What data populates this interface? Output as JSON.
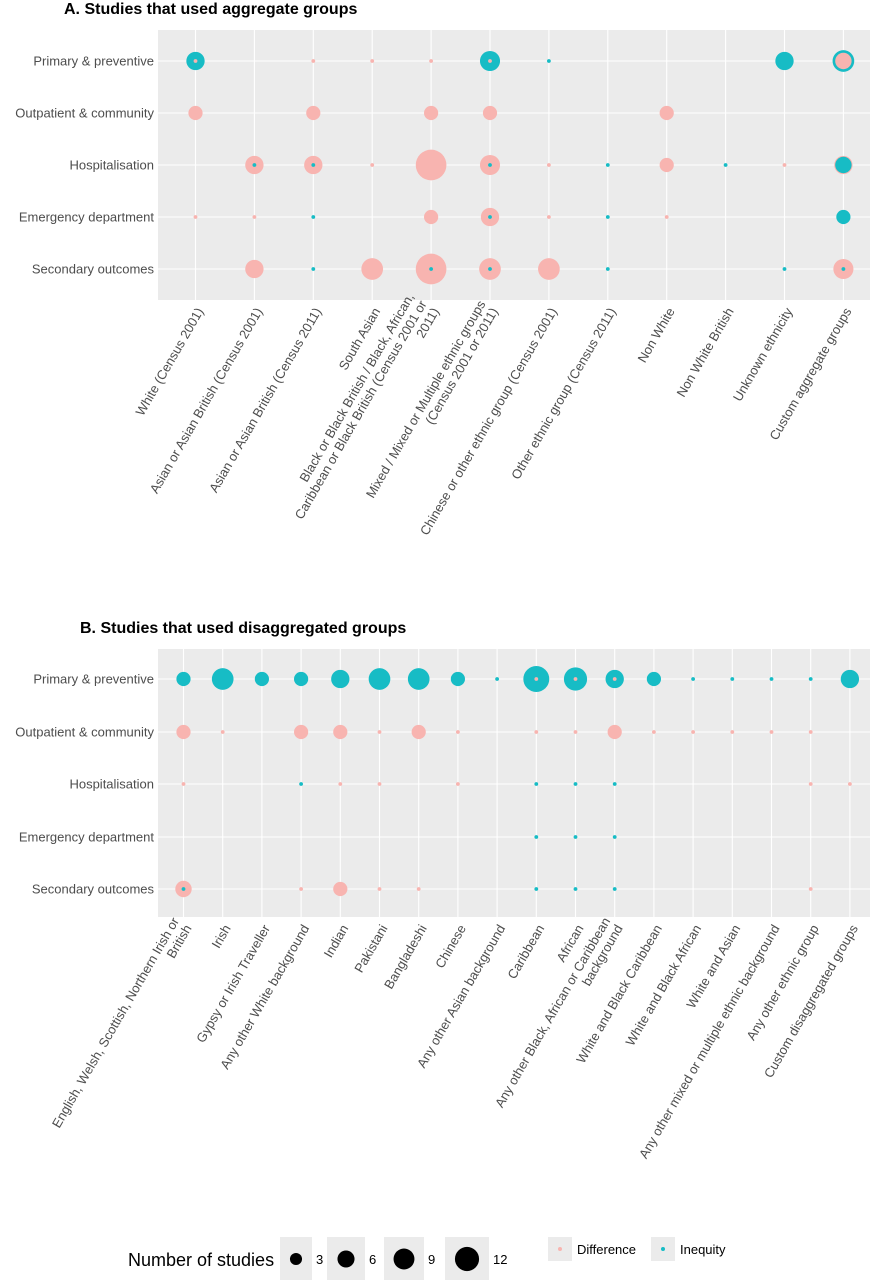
{
  "chart_data": [
    {
      "type": "scatter",
      "title": "A. Studies that used aggregate groups",
      "rows": [
        "Primary & preventive",
        "Outpatient & community",
        "Hospitalisation",
        "Emergency department",
        "Secondary outcomes"
      ],
      "columns": [
        [
          "White (Census 2001)"
        ],
        [
          "Asian or Asian British (Census 2001)"
        ],
        [
          "Asian or Asian British (Census 2011)"
        ],
        [
          "South Asian"
        ],
        [
          "Black or Black British / Black, African,",
          "Caribbean or Black British (Census 2001 or",
          "2011)"
        ],
        [
          "Mixed / Mixed or Multiple ethnic groups",
          "(Census 2001 or 2011)"
        ],
        [
          "Chinese or other ethnic group (Census 2001)"
        ],
        [
          "Other ethnic group (Census 2011)"
        ],
        [
          "Non White"
        ],
        [
          "Non White British"
        ],
        [
          "Unknown ethnicity"
        ],
        [
          "Custom aggregate groups"
        ]
      ],
      "points": [
        {
          "row": 0,
          "col": 0,
          "difference": 1,
          "inequity": 5
        },
        {
          "row": 0,
          "col": 2,
          "difference": 1,
          "inequity": 0
        },
        {
          "row": 0,
          "col": 3,
          "difference": 1,
          "inequity": 0
        },
        {
          "row": 0,
          "col": 4,
          "difference": 1,
          "inequity": 0
        },
        {
          "row": 0,
          "col": 5,
          "difference": 1,
          "inequity": 6
        },
        {
          "row": 0,
          "col": 6,
          "difference": 0,
          "inequity": 1
        },
        {
          "row": 0,
          "col": 10,
          "difference": 0,
          "inequity": 5
        },
        {
          "row": 0,
          "col": 11,
          "difference": 4,
          "inequity": 7
        },
        {
          "row": 1,
          "col": 0,
          "difference": 3,
          "inequity": 0
        },
        {
          "row": 1,
          "col": 2,
          "difference": 3,
          "inequity": 0
        },
        {
          "row": 1,
          "col": 4,
          "difference": 3,
          "inequity": 0
        },
        {
          "row": 1,
          "col": 5,
          "difference": 3,
          "inequity": 0
        },
        {
          "row": 1,
          "col": 8,
          "difference": 3,
          "inequity": 0
        },
        {
          "row": 2,
          "col": 1,
          "difference": 5,
          "inequity": 1
        },
        {
          "row": 2,
          "col": 2,
          "difference": 5,
          "inequity": 1
        },
        {
          "row": 2,
          "col": 3,
          "difference": 1,
          "inequity": 0
        },
        {
          "row": 2,
          "col": 4,
          "difference": 14,
          "inequity": 0
        },
        {
          "row": 2,
          "col": 5,
          "difference": 6,
          "inequity": 1
        },
        {
          "row": 2,
          "col": 6,
          "difference": 1,
          "inequity": 0
        },
        {
          "row": 2,
          "col": 7,
          "difference": 0,
          "inequity": 1
        },
        {
          "row": 2,
          "col": 8,
          "difference": 3,
          "inequity": 0
        },
        {
          "row": 2,
          "col": 9,
          "difference": 0,
          "inequity": 1
        },
        {
          "row": 2,
          "col": 10,
          "difference": 1,
          "inequity": 0
        },
        {
          "row": 2,
          "col": 11,
          "difference": 5,
          "inequity": 4
        },
        {
          "row": 3,
          "col": 0,
          "difference": 1,
          "inequity": 0
        },
        {
          "row": 3,
          "col": 1,
          "difference": 1,
          "inequity": 0
        },
        {
          "row": 3,
          "col": 2,
          "difference": 0,
          "inequity": 1
        },
        {
          "row": 3,
          "col": 4,
          "difference": 3,
          "inequity": 0
        },
        {
          "row": 3,
          "col": 5,
          "difference": 5,
          "inequity": 1
        },
        {
          "row": 3,
          "col": 6,
          "difference": 1,
          "inequity": 0
        },
        {
          "row": 3,
          "col": 7,
          "difference": 0,
          "inequity": 1
        },
        {
          "row": 3,
          "col": 8,
          "difference": 1,
          "inequity": 0
        },
        {
          "row": 3,
          "col": 11,
          "difference": 0,
          "inequity": 3
        },
        {
          "row": 4,
          "col": 1,
          "difference": 5,
          "inequity": 0
        },
        {
          "row": 4,
          "col": 2,
          "difference": 0,
          "inequity": 1
        },
        {
          "row": 4,
          "col": 3,
          "difference": 7,
          "inequity": 0
        },
        {
          "row": 4,
          "col": 4,
          "difference": 14,
          "inequity": 1
        },
        {
          "row": 4,
          "col": 5,
          "difference": 7,
          "inequity": 1
        },
        {
          "row": 4,
          "col": 6,
          "difference": 7,
          "inequity": 0
        },
        {
          "row": 4,
          "col": 7,
          "difference": 0,
          "inequity": 1
        },
        {
          "row": 4,
          "col": 10,
          "difference": 0,
          "inequity": 1
        },
        {
          "row": 4,
          "col": 11,
          "difference": 6,
          "inequity": 1
        }
      ]
    },
    {
      "type": "scatter",
      "title": "B. Studies that used disaggregated groups",
      "rows": [
        "Primary & preventive",
        "Outpatient & community",
        "Hospitalisation",
        "Emergency department",
        "Secondary outcomes"
      ],
      "columns": [
        [
          "English, Welsh, Scottish, Northern Irish or",
          "British"
        ],
        [
          "Irish"
        ],
        [
          "Gypsy or Irish Traveller"
        ],
        [
          "Any other White background"
        ],
        [
          "Indian"
        ],
        [
          "Pakistani"
        ],
        [
          "Bangladeshi"
        ],
        [
          "Chinese"
        ],
        [
          "Any other Asian background"
        ],
        [
          "Caribbean"
        ],
        [
          "African"
        ],
        [
          "Any other Black, African or Caribbean",
          "background"
        ],
        [
          "White and Black Caribbean"
        ],
        [
          "White and Black African"
        ],
        [
          "White and Asian"
        ],
        [
          "Any other mixed or multiple ethnic background"
        ],
        [
          "Any other ethnic group"
        ],
        [
          "Custom disaggregated groups"
        ]
      ],
      "points": [
        {
          "row": 0,
          "col": 0,
          "difference": 0,
          "inequity": 3
        },
        {
          "row": 0,
          "col": 1,
          "difference": 0,
          "inequity": 7
        },
        {
          "row": 0,
          "col": 2,
          "difference": 0,
          "inequity": 3
        },
        {
          "row": 0,
          "col": 3,
          "difference": 0,
          "inequity": 3
        },
        {
          "row": 0,
          "col": 4,
          "difference": 0,
          "inequity": 5
        },
        {
          "row": 0,
          "col": 5,
          "difference": 0,
          "inequity": 7
        },
        {
          "row": 0,
          "col": 6,
          "difference": 0,
          "inequity": 7
        },
        {
          "row": 0,
          "col": 7,
          "difference": 0,
          "inequity": 3
        },
        {
          "row": 0,
          "col": 8,
          "difference": 0,
          "inequity": 1
        },
        {
          "row": 0,
          "col": 9,
          "difference": 1,
          "inequity": 10
        },
        {
          "row": 0,
          "col": 10,
          "difference": 1,
          "inequity": 8
        },
        {
          "row": 0,
          "col": 11,
          "difference": 1,
          "inequity": 5
        },
        {
          "row": 0,
          "col": 12,
          "difference": 0,
          "inequity": 3
        },
        {
          "row": 0,
          "col": 13,
          "difference": 0,
          "inequity": 1
        },
        {
          "row": 0,
          "col": 14,
          "difference": 0,
          "inequity": 1
        },
        {
          "row": 0,
          "col": 15,
          "difference": 0,
          "inequity": 1
        },
        {
          "row": 0,
          "col": 16,
          "difference": 0,
          "inequity": 1
        },
        {
          "row": 0,
          "col": 17,
          "difference": 0,
          "inequity": 5
        },
        {
          "row": 1,
          "col": 0,
          "difference": 3,
          "inequity": 0
        },
        {
          "row": 1,
          "col": 1,
          "difference": 1,
          "inequity": 0
        },
        {
          "row": 1,
          "col": 3,
          "difference": 3,
          "inequity": 0
        },
        {
          "row": 1,
          "col": 4,
          "difference": 3,
          "inequity": 0
        },
        {
          "row": 1,
          "col": 5,
          "difference": 1,
          "inequity": 0
        },
        {
          "row": 1,
          "col": 6,
          "difference": 3,
          "inequity": 0
        },
        {
          "row": 1,
          "col": 7,
          "difference": 1,
          "inequity": 0
        },
        {
          "row": 1,
          "col": 9,
          "difference": 1,
          "inequity": 0
        },
        {
          "row": 1,
          "col": 10,
          "difference": 1,
          "inequity": 0
        },
        {
          "row": 1,
          "col": 11,
          "difference": 3,
          "inequity": 0
        },
        {
          "row": 1,
          "col": 12,
          "difference": 1,
          "inequity": 0
        },
        {
          "row": 1,
          "col": 13,
          "difference": 1,
          "inequity": 0
        },
        {
          "row": 1,
          "col": 14,
          "difference": 1,
          "inequity": 0
        },
        {
          "row": 1,
          "col": 15,
          "difference": 1,
          "inequity": 0
        },
        {
          "row": 1,
          "col": 16,
          "difference": 1,
          "inequity": 0
        },
        {
          "row": 2,
          "col": 0,
          "difference": 1,
          "inequity": 0
        },
        {
          "row": 2,
          "col": 3,
          "difference": 0,
          "inequity": 1
        },
        {
          "row": 2,
          "col": 4,
          "difference": 1,
          "inequity": 0
        },
        {
          "row": 2,
          "col": 5,
          "difference": 1,
          "inequity": 0
        },
        {
          "row": 2,
          "col": 7,
          "difference": 1,
          "inequity": 0
        },
        {
          "row": 2,
          "col": 9,
          "difference": 0,
          "inequity": 1
        },
        {
          "row": 2,
          "col": 10,
          "difference": 0,
          "inequity": 1
        },
        {
          "row": 2,
          "col": 11,
          "difference": 0,
          "inequity": 1
        },
        {
          "row": 2,
          "col": 16,
          "difference": 1,
          "inequity": 0
        },
        {
          "row": 2,
          "col": 17,
          "difference": 1,
          "inequity": 0
        },
        {
          "row": 3,
          "col": 9,
          "difference": 0,
          "inequity": 1
        },
        {
          "row": 3,
          "col": 10,
          "difference": 0,
          "inequity": 1
        },
        {
          "row": 3,
          "col": 11,
          "difference": 0,
          "inequity": 1
        },
        {
          "row": 4,
          "col": 0,
          "difference": 4,
          "inequity": 1
        },
        {
          "row": 4,
          "col": 3,
          "difference": 1,
          "inequity": 0
        },
        {
          "row": 4,
          "col": 4,
          "difference": 3,
          "inequity": 0
        },
        {
          "row": 4,
          "col": 5,
          "difference": 1,
          "inequity": 0
        },
        {
          "row": 4,
          "col": 6,
          "difference": 1,
          "inequity": 0
        },
        {
          "row": 4,
          "col": 9,
          "difference": 0,
          "inequity": 1
        },
        {
          "row": 4,
          "col": 10,
          "difference": 0,
          "inequity": 1
        },
        {
          "row": 4,
          "col": 11,
          "difference": 0,
          "inequity": 1
        },
        {
          "row": 4,
          "col": 16,
          "difference": 1,
          "inequity": 0
        }
      ]
    }
  ],
  "legend": {
    "size_title": "Number of studies",
    "sizes": [
      3,
      6,
      9,
      12
    ],
    "size_labels": [
      "3",
      "6",
      "9",
      "12"
    ],
    "color_items": [
      {
        "label": "Difference",
        "color": "#F8B4B0"
      },
      {
        "label": "Inequity",
        "color": "#17BCC5"
      }
    ]
  },
  "colors": {
    "panel_bg": "#EBEBEB",
    "grid": "#FFFFFF",
    "difference": "#F8B4B0",
    "inequity": "#17BCC5",
    "axis_text": "#4D4D4D"
  }
}
